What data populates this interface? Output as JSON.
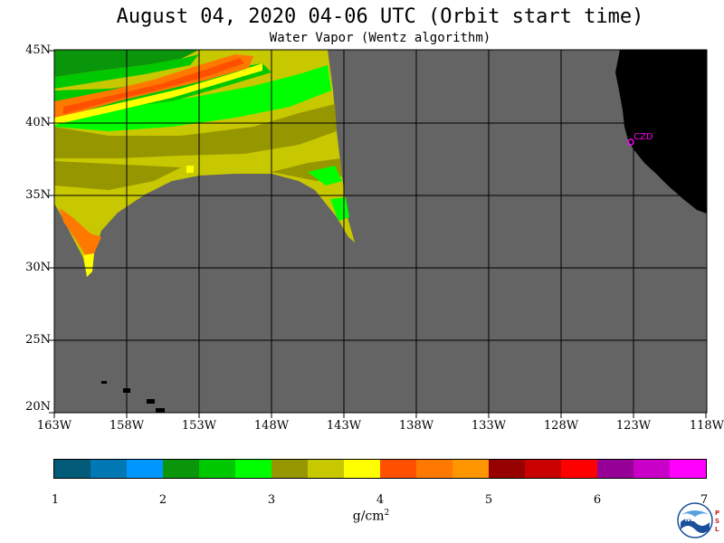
{
  "title": "August 04, 2020  04-06 UTC  (Orbit start time)",
  "subtitle": "Water Vapor (Wentz algorithm)",
  "lat_labels": [
    "45N",
    "40N",
    "35N",
    "30N",
    "25N",
    "20N"
  ],
  "lon_labels": [
    "163W",
    "158W",
    "153W",
    "148W",
    "143W",
    "138W",
    "133W",
    "128W",
    "123W",
    "118W"
  ],
  "station_label": "CZD",
  "colorbar": {
    "colors": [
      "#005a78",
      "#0078b4",
      "#0096ff",
      "#0a960a",
      "#00c800",
      "#00ff00",
      "#969600",
      "#c8c800",
      "#ffff00",
      "#ff5000",
      "#ff7800",
      "#ff9600",
      "#960000",
      "#c80000",
      "#ff0000",
      "#960096",
      "#c800c8",
      "#ff00ff"
    ],
    "ticks": [
      "1",
      "2",
      "3",
      "4",
      "5",
      "6",
      "7"
    ],
    "units": "g/cm",
    "units_exp": "2"
  },
  "logo_text": "NOAA",
  "psl_text": "PSL",
  "map_colors": {
    "ocean_nodata": "#646464",
    "land": "#000000",
    "grid": "#000000",
    "station": "#ff00ff"
  }
}
